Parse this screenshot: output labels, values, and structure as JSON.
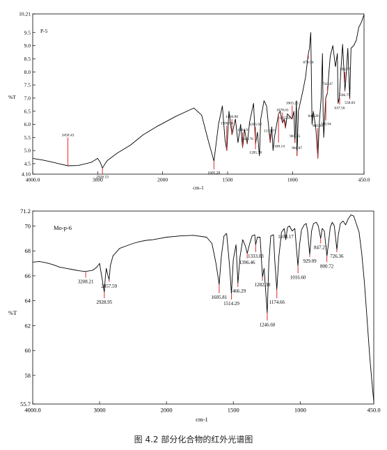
{
  "caption": "图 4.2 部分化合物的红外光谱图",
  "chart_data": [
    {
      "type": "line",
      "sample_label": "P-5",
      "xlabel": "cm-1",
      "ylabel": "%T",
      "xlim": [
        4000,
        450
      ],
      "ylim": [
        4.1,
        10.21
      ],
      "x_ticks": [
        "4000.0",
        "3000",
        "2000",
        "1500",
        "1000",
        "450.0"
      ],
      "y_ticks": [
        "10.21",
        "9.5",
        "9.0",
        "8.5",
        "8.0",
        "7.5",
        "7.0",
        "6.5",
        "6.0",
        "5.5",
        "5.0",
        "4.5",
        "4.10"
      ],
      "series": [
        {
          "values": [
            [
              4000,
              4.7
            ],
            [
              3850,
              4.64
            ],
            [
              3700,
              4.56
            ],
            [
              3600,
              4.5
            ],
            [
              3458,
              4.42
            ],
            [
              3300,
              4.43
            ],
            [
              3100,
              4.55
            ],
            [
              3000,
              4.7
            ],
            [
              2960,
              4.55
            ],
            [
              2926,
              4.33
            ],
            [
              2880,
              4.52
            ],
            [
              2850,
              4.62
            ],
            [
              2700,
              4.9
            ],
            [
              2500,
              5.2
            ],
            [
              2300,
              5.6
            ],
            [
              2100,
              5.9
            ],
            [
              1900,
              6.3
            ],
            [
              1760,
              6.62
            ],
            [
              1700,
              6.35
            ],
            [
              1650,
              5.4
            ],
            [
              1605,
              4.6
            ],
            [
              1570,
              6.0
            ],
            [
              1540,
              6.7
            ],
            [
              1520,
              5.4
            ],
            [
              1506,
              5.0
            ],
            [
              1490,
              6.5
            ],
            [
              1466,
              5.6
            ],
            [
              1440,
              6.2
            ],
            [
              1420,
              5.3
            ],
            [
              1400,
              6.0
            ],
            [
              1385,
              5.1
            ],
            [
              1370,
              5.8
            ],
            [
              1349,
              5.25
            ],
            [
              1330,
              6.1
            ],
            [
              1300,
              6.8
            ],
            [
              1285,
              5.25
            ],
            [
              1270,
              5.7
            ],
            [
              1255,
              4.8
            ],
            [
              1245,
              6.2
            ],
            [
              1220,
              6.9
            ],
            [
              1200,
              6.7
            ],
            [
              1172,
              5.3
            ],
            [
              1160,
              5.9
            ],
            [
              1150,
              5.0
            ],
            [
              1140,
              5.5
            ],
            [
              1108,
              6.4
            ],
            [
              1095,
              6.5
            ],
            [
              1078,
              6.05
            ],
            [
              1065,
              6.2
            ],
            [
              1055,
              5.85
            ],
            [
              1040,
              6.4
            ],
            [
              1003,
              6.2
            ],
            [
              990,
              6.5
            ],
            [
              982,
              5.3
            ],
            [
              970,
              6.9
            ],
            [
              966,
              4.8
            ],
            [
              955,
              6.5
            ],
            [
              920,
              7.3
            ],
            [
              900,
              7.8
            ],
            [
              880,
              8.65
            ],
            [
              870,
              8.9
            ],
            [
              860,
              9.5
            ],
            [
              850,
              6.0
            ],
            [
              840,
              6.5
            ],
            [
              820,
              5.8
            ],
            [
              805,
              4.7
            ],
            [
              795,
              6.0
            ],
            [
              780,
              7.0
            ],
            [
              770,
              8.7
            ],
            [
              765,
              6.5
            ],
            [
              760,
              5.5
            ],
            [
              745,
              7.0
            ],
            [
              731,
              7.2
            ],
            [
              720,
              8.0
            ],
            [
              710,
              8.6
            ],
            [
              690,
              9.0
            ],
            [
              670,
              8.2
            ],
            [
              655,
              8.7
            ],
            [
              650,
              6.8
            ],
            [
              640,
              7.0
            ],
            [
              630,
              7.9
            ],
            [
              615,
              9.05
            ],
            [
              597,
              7.3
            ],
            [
              590,
              7.7
            ],
            [
              575,
              8.9
            ],
            [
              560,
              7.0
            ],
            [
              550,
              8.9
            ],
            [
              530,
              9.0
            ],
            [
              510,
              9.2
            ],
            [
              490,
              9.7
            ],
            [
              470,
              9.9
            ],
            [
              450,
              10.18
            ]
          ]
        }
      ],
      "annotations": [
        {
          "x": 3458.43,
          "label": "3458.43",
          "y": 4.42,
          "ty": 5.5
        },
        {
          "x": 2926.53,
          "label": "2926.53",
          "y": 4.33,
          "ty": 4.12
        },
        {
          "x": 1605.28,
          "label": "1605.28",
          "y": 4.6,
          "ty": 4.28
        },
        {
          "x": 1506.9,
          "label": "1506.90",
          "y": 5.0,
          "ty": 5.95
        },
        {
          "x": 1466.8,
          "label": "1466.80",
          "y": 5.6,
          "ty": 6.2
        },
        {
          "x": 1384.9,
          "label": "1384.9",
          "y": 5.1,
          "ty": 5.7
        },
        {
          "x": 1349.76,
          "label": "1349.76",
          "y": 5.25,
          "ty": 5.35
        },
        {
          "x": 1285.92,
          "label": "1285.92",
          "y": 5.25,
          "ty": 5.9
        },
        {
          "x": 1285.38,
          "label": "1285.38",
          "y": 5.25,
          "ty": 5.05
        },
        {
          "x": 1172.77,
          "label": "1172.77",
          "y": 5.3,
          "ty": 5.65
        },
        {
          "x": 1108.14,
          "label": "1108.14",
          "y": 6.4,
          "ty": 5.3
        },
        {
          "x": 1078.01,
          "label": "1078.01",
          "y": 6.05,
          "ty": 6.45
        },
        {
          "x": 1055.95,
          "label": "1055.95",
          "y": 5.85,
          "ty": 6.15
        },
        {
          "x": 1003.25,
          "label": "1003.25",
          "y": 6.2,
          "ty": 6.72
        },
        {
          "x": 981.95,
          "label": "981.95",
          "y": 5.3,
          "ty": 5.45
        },
        {
          "x": 966.87,
          "label": "966.87",
          "y": 4.8,
          "ty": 5.0
        },
        {
          "x": 878.96,
          "label": "878.96",
          "y": 8.65,
          "ty": 8.5
        },
        {
          "x": 840.28,
          "label": "840.28",
          "y": 6.5,
          "ty": 6.45
        },
        {
          "x": 805.9,
          "label": "805.90",
          "y": 4.7,
          "ty": 5.85
        },
        {
          "x": 743.94,
          "label": "743.94",
          "y": 7.0,
          "ty": 6.15
        },
        {
          "x": 731.47,
          "label": "731.47",
          "y": 7.2,
          "ty": 7.45
        },
        {
          "x": 637.56,
          "label": "637.56",
          "y": 7.0,
          "ty": 6.75
        },
        {
          "x": 596.75,
          "label": "596.75",
          "y": 7.3,
          "ty": 7.25
        },
        {
          "x": 596.77,
          "label": "596.77",
          "y": 7.6,
          "ty": 8.0
        },
        {
          "x": 558.83,
          "label": "558.83",
          "y": 7.0,
          "ty": 6.95
        }
      ]
    },
    {
      "type": "line",
      "sample_label": "Mo-p-6",
      "xlabel": "cm-1",
      "ylabel": "%T",
      "xlim": [
        4000,
        450
      ],
      "ylim": [
        55.7,
        71.2
      ],
      "x_ticks": [
        "4000.0",
        "3000",
        "2000",
        "1500",
        "1000",
        "450.0"
      ],
      "y_ticks": [
        "71.2",
        "70",
        "68",
        "66",
        "64",
        "62",
        "60",
        "58",
        "55.7"
      ],
      "series": [
        {
          "values": [
            [
              4000,
              67.1
            ],
            [
              3900,
              67.15
            ],
            [
              3800,
              67.05
            ],
            [
              3700,
              66.9
            ],
            [
              3600,
              66.7
            ],
            [
              3500,
              66.6
            ],
            [
              3400,
              66.5
            ],
            [
              3300,
              66.4
            ],
            [
              3208,
              66.35
            ],
            [
              3100,
              66.45
            ],
            [
              3040,
              66.7
            ],
            [
              3000,
              67.0
            ],
            [
              2985,
              66.5
            ],
            [
              2960,
              65.7
            ],
            [
              2940,
              65.0
            ],
            [
              2929,
              64.7
            ],
            [
              2915,
              65.8
            ],
            [
              2900,
              66.6
            ],
            [
              2880,
              66.1
            ],
            [
              2857,
              65.7
            ],
            [
              2840,
              66.8
            ],
            [
              2800,
              67.6
            ],
            [
              2700,
              68.2
            ],
            [
              2600,
              68.4
            ],
            [
              2500,
              68.6
            ],
            [
              2400,
              68.75
            ],
            [
              2300,
              68.85
            ],
            [
              2200,
              68.9
            ],
            [
              2100,
              69.0
            ],
            [
              2000,
              69.1
            ],
            [
              1900,
              69.2
            ],
            [
              1800,
              69.25
            ],
            [
              1700,
              69.1
            ],
            [
              1660,
              68.6
            ],
            [
              1630,
              67.0
            ],
            [
              1606,
              65.3
            ],
            [
              1590,
              67.5
            ],
            [
              1570,
              69.2
            ],
            [
              1550,
              69.4
            ],
            [
              1530,
              67.0
            ],
            [
              1514,
              64.6
            ],
            [
              1500,
              67.3
            ],
            [
              1480,
              68.5
            ],
            [
              1466,
              65.4
            ],
            [
              1450,
              67.5
            ],
            [
              1430,
              68.9
            ],
            [
              1410,
              68.4
            ],
            [
              1396,
              67.8
            ],
            [
              1380,
              68.5
            ],
            [
              1360,
              69.2
            ],
            [
              1340,
              69.3
            ],
            [
              1333,
              68.5
            ],
            [
              1320,
              69.1
            ],
            [
              1300,
              69.1
            ],
            [
              1282,
              65.9
            ],
            [
              1270,
              66.6
            ],
            [
              1260,
              65.0
            ],
            [
              1247,
              63.0
            ],
            [
              1235,
              67.0
            ],
            [
              1220,
              69.2
            ],
            [
              1200,
              69.3
            ],
            [
              1190,
              67.2
            ],
            [
              1175,
              64.9
            ],
            [
              1160,
              67.5
            ],
            [
              1140,
              69.5
            ],
            [
              1120,
              69.8
            ],
            [
              1108,
              68.9
            ],
            [
              1095,
              69.9
            ],
            [
              1080,
              70.0
            ],
            [
              1060,
              69.6
            ],
            [
              1040,
              69.8
            ],
            [
              1030,
              68.5
            ],
            [
              1017,
              66.8
            ],
            [
              1005,
              68.5
            ],
            [
              990,
              69.7
            ],
            [
              970,
              70.1
            ],
            [
              955,
              70.2
            ],
            [
              945,
              69.6
            ],
            [
              929,
              67.7
            ],
            [
              915,
              69.6
            ],
            [
              900,
              70.2
            ],
            [
              880,
              70.3
            ],
            [
              865,
              70.0
            ],
            [
              847,
              69.0
            ],
            [
              835,
              69.8
            ],
            [
              820,
              69.6
            ],
            [
              800,
              67.6
            ],
            [
              790,
              68.5
            ],
            [
              775,
              69.9
            ],
            [
              760,
              70.3
            ],
            [
              745,
              70.0
            ],
            [
              726,
              68.1
            ],
            [
              715,
              69.3
            ],
            [
              700,
              70.2
            ],
            [
              680,
              70.4
            ],
            [
              660,
              70.1
            ],
            [
              640,
              70.6
            ],
            [
              620,
              70.9
            ],
            [
              600,
              70.8
            ],
            [
              560,
              69.5
            ],
            [
              540,
              67.8
            ],
            [
              520,
              65.5
            ],
            [
              500,
              62.5
            ],
            [
              480,
              59.5
            ],
            [
              460,
              57.0
            ],
            [
              450,
              55.9
            ]
          ]
        }
      ],
      "annotations": [
        {
          "x": 3208.21,
          "label": "3208.21",
          "y": 66.35,
          "ty": 65.85
        },
        {
          "x": 2857.59,
          "label": "2857.59",
          "y": 65.7,
          "ty": 65.5
        },
        {
          "x": 2928.95,
          "label": "2928.95",
          "y": 64.7,
          "ty": 64.2
        },
        {
          "x": 1605.81,
          "label": "1605.81",
          "y": 65.3,
          "ty": 64.6
        },
        {
          "x": 1514.29,
          "label": "1514.29",
          "y": 64.6,
          "ty": 64.1
        },
        {
          "x": 1466.29,
          "label": "1466.29",
          "y": 65.4,
          "ty": 65.1
        },
        {
          "x": 1396.46,
          "label": "1396.46",
          "y": 67.8,
          "ty": 67.4
        },
        {
          "x": 1333.03,
          "label": "1333.03",
          "y": 68.5,
          "ty": 67.9
        },
        {
          "x": 1282.38,
          "label": "1282.38",
          "y": 65.9,
          "ty": 65.6
        },
        {
          "x": 1246.6,
          "label": "1246.60",
          "y": 63.0,
          "ty": 62.4
        },
        {
          "x": 1174.66,
          "label": "1174.66",
          "y": 64.9,
          "ty": 64.2
        },
        {
          "x": 1108.17,
          "label": "1108.17",
          "y": 68.9,
          "ty": 68.9
        },
        {
          "x": 1016.6,
          "label": "1016.60",
          "y": 66.8,
          "ty": 66.2
        },
        {
          "x": 929.09,
          "label": "929.09",
          "y": 67.7,
          "ty": 67.5
        },
        {
          "x": 847.21,
          "label": "847.21",
          "y": 69.0,
          "ty": 68.6
        },
        {
          "x": 800.72,
          "label": "800.72",
          "y": 67.6,
          "ty": 67.1
        },
        {
          "x": 726.36,
          "label": "726.36",
          "y": 68.1,
          "ty": 67.9
        }
      ]
    }
  ]
}
